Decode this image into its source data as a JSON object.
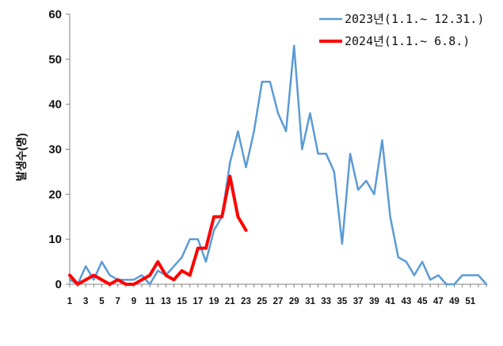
{
  "chart_data": {
    "type": "line",
    "title": "",
    "xlabel": "",
    "ylabel": "발생수(명)",
    "ylim": [
      0,
      60
    ],
    "yticks": [
      0,
      10,
      20,
      30,
      40,
      50,
      60
    ],
    "xlim": [
      1,
      53
    ],
    "xticks": [
      1,
      3,
      5,
      7,
      9,
      11,
      13,
      15,
      17,
      19,
      21,
      23,
      25,
      27,
      29,
      31,
      33,
      35,
      37,
      39,
      41,
      43,
      45,
      47,
      49,
      51
    ],
    "grid": false,
    "legend_position": "top-right",
    "series": [
      {
        "name": "2023년(1.1.~ 12.31.)",
        "color": "#5B9BD5",
        "x": [
          1,
          2,
          3,
          4,
          5,
          6,
          7,
          8,
          9,
          10,
          11,
          12,
          13,
          14,
          15,
          16,
          17,
          18,
          19,
          20,
          21,
          22,
          23,
          24,
          25,
          26,
          27,
          28,
          29,
          30,
          31,
          32,
          33,
          34,
          35,
          36,
          37,
          38,
          39,
          40,
          41,
          42,
          43,
          44,
          45,
          46,
          47,
          48,
          49,
          50,
          51,
          52,
          53
        ],
        "values": [
          1,
          0,
          4,
          1,
          5,
          2,
          1,
          1,
          1,
          2,
          0,
          3,
          2,
          4,
          6,
          10,
          10,
          5,
          12,
          15,
          27,
          34,
          26,
          34,
          45,
          45,
          38,
          34,
          53,
          30,
          38,
          29,
          29,
          25,
          9,
          29,
          21,
          23,
          20,
          32,
          15,
          6,
          5,
          2,
          5,
          1,
          2,
          0,
          0,
          2,
          2,
          2,
          0
        ]
      },
      {
        "name": "2024년(1.1.~ 6.8.)",
        "color": "#FF0000",
        "x": [
          1,
          2,
          3,
          4,
          5,
          6,
          7,
          8,
          9,
          10,
          11,
          12,
          13,
          14,
          15,
          16,
          17,
          18,
          19,
          20,
          21,
          22,
          23
        ],
        "values": [
          2,
          0,
          1,
          2,
          1,
          0,
          1,
          0,
          0,
          1,
          2,
          5,
          2,
          1,
          3,
          2,
          8,
          8,
          15,
          15,
          24,
          15,
          12
        ]
      }
    ]
  }
}
